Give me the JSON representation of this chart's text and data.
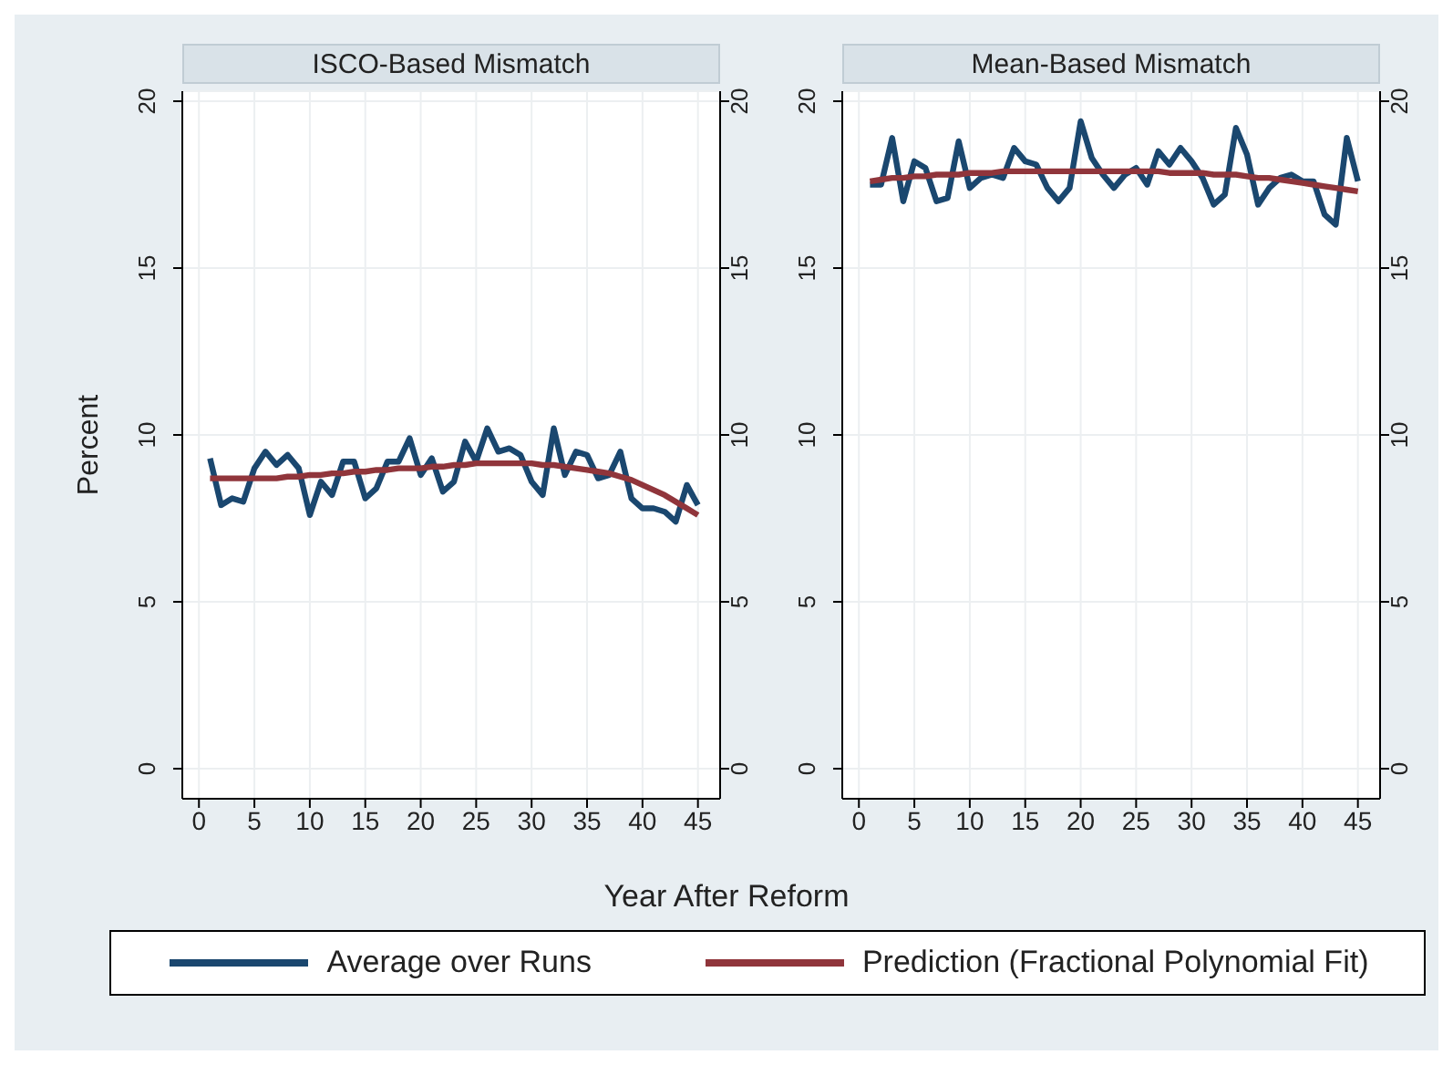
{
  "chart_data": [
    {
      "type": "line",
      "title": "ISCO-Based Mismatch",
      "ylabel": "Percent",
      "xlabel": "Year After Reform",
      "legend": "bottom",
      "grid": true,
      "line_style": "solid",
      "marker": "none",
      "xlim": [
        -1.5,
        47
      ],
      "xticks": [
        0,
        5,
        10,
        15,
        20,
        25,
        30,
        35,
        40,
        45
      ],
      "ylim": [
        -0.9,
        20.3
      ],
      "yticks": [
        0,
        5,
        10,
        15,
        20
      ],
      "y2lim": [
        -0.9,
        20.3
      ],
      "y2ticks": [
        0,
        5,
        10,
        15,
        20
      ],
      "x": [
        1,
        2,
        3,
        4,
        5,
        6,
        7,
        8,
        9,
        10,
        11,
        12,
        13,
        14,
        15,
        16,
        17,
        18,
        19,
        20,
        21,
        22,
        23,
        24,
        25,
        26,
        27,
        28,
        29,
        30,
        31,
        32,
        33,
        34,
        35,
        36,
        37,
        38,
        39,
        40,
        41,
        42,
        43,
        44,
        45
      ],
      "series": [
        {
          "name": "Average over Runs",
          "color": "#1a476f",
          "values": [
            9.3,
            7.9,
            8.1,
            8.0,
            9.0,
            9.5,
            9.1,
            9.4,
            9.0,
            7.6,
            8.6,
            8.2,
            9.2,
            9.2,
            8.1,
            8.4,
            9.2,
            9.2,
            9.9,
            8.8,
            9.3,
            8.3,
            8.6,
            9.8,
            9.2,
            10.2,
            9.5,
            9.6,
            9.4,
            8.6,
            8.2,
            10.2,
            8.8,
            9.5,
            9.4,
            8.7,
            8.8,
            9.5,
            8.1,
            7.8,
            7.8,
            7.7,
            7.4,
            8.5,
            7.9
          ]
        },
        {
          "name": "Prediction (Fractional Polynomial Fit)",
          "color": "#90353b",
          "values": [
            8.7,
            8.7,
            8.7,
            8.7,
            8.7,
            8.7,
            8.7,
            8.75,
            8.75,
            8.8,
            8.8,
            8.85,
            8.85,
            8.9,
            8.9,
            8.95,
            8.95,
            9.0,
            9.0,
            9.0,
            9.05,
            9.05,
            9.1,
            9.1,
            9.15,
            9.15,
            9.15,
            9.15,
            9.15,
            9.15,
            9.1,
            9.1,
            9.05,
            9.0,
            8.95,
            8.9,
            8.85,
            8.75,
            8.65,
            8.5,
            8.35,
            8.2,
            8.0,
            7.8,
            7.6
          ]
        }
      ]
    },
    {
      "type": "line",
      "title": "Mean-Based Mismatch",
      "grid": true,
      "line_style": "solid",
      "marker": "none",
      "xlim": [
        -1.5,
        47
      ],
      "xticks": [
        0,
        5,
        10,
        15,
        20,
        25,
        30,
        35,
        40,
        45
      ],
      "ylim": [
        -0.9,
        20.3
      ],
      "yticks": [
        0,
        5,
        10,
        15,
        20
      ],
      "y2lim": [
        -0.9,
        20.3
      ],
      "y2ticks": [
        0,
        5,
        10,
        15,
        20
      ],
      "x": [
        1,
        2,
        3,
        4,
        5,
        6,
        7,
        8,
        9,
        10,
        11,
        12,
        13,
        14,
        15,
        16,
        17,
        18,
        19,
        20,
        21,
        22,
        23,
        24,
        25,
        26,
        27,
        28,
        29,
        30,
        31,
        32,
        33,
        34,
        35,
        36,
        37,
        38,
        39,
        40,
        41,
        42,
        43,
        44,
        45
      ],
      "series": [
        {
          "color": "#1a476f",
          "values": [
            17.5,
            17.5,
            18.9,
            17.0,
            18.2,
            18.0,
            17.0,
            17.1,
            18.8,
            17.4,
            17.7,
            17.8,
            17.7,
            18.6,
            18.2,
            18.1,
            17.4,
            17.0,
            17.4,
            19.4,
            18.3,
            17.8,
            17.4,
            17.8,
            18.0,
            17.5,
            18.5,
            18.1,
            18.6,
            18.2,
            17.7,
            16.9,
            17.2,
            19.2,
            18.4,
            16.9,
            17.4,
            17.7,
            17.8,
            17.6,
            17.6,
            16.6,
            16.3,
            18.9,
            17.6
          ]
        },
        {
          "color": "#90353b",
          "values": [
            17.6,
            17.65,
            17.7,
            17.7,
            17.75,
            17.75,
            17.8,
            17.8,
            17.8,
            17.85,
            17.85,
            17.85,
            17.9,
            17.9,
            17.9,
            17.9,
            17.9,
            17.9,
            17.9,
            17.9,
            17.9,
            17.9,
            17.9,
            17.9,
            17.9,
            17.9,
            17.9,
            17.85,
            17.85,
            17.85,
            17.85,
            17.8,
            17.8,
            17.8,
            17.75,
            17.7,
            17.7,
            17.65,
            17.6,
            17.55,
            17.5,
            17.45,
            17.4,
            17.35,
            17.3
          ]
        }
      ]
    }
  ]
}
